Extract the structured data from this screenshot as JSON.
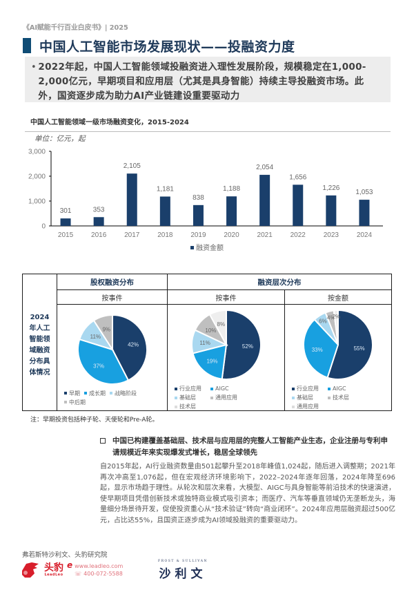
{
  "header": {
    "doc_title": "《AI赋能千行百业白皮书》| 2025",
    "page_title": "中国人工智能市场发展现状——投融资力度",
    "accent_color": "#0f4c75"
  },
  "summary": {
    "bullet": "•",
    "text": "2022年起，中国人工智能领域投融资进入理性发展阶段，规模稳定在1,000-2,000亿元，早期项目和应用层（尤其是具身智能）持续主导投融资市场。此外，国资逐步成为助力AI产业链建设重要驱动力"
  },
  "bar_section": {
    "title": "中国人工智能领域一级市场融资变化，2015-2024",
    "unit": "单位：亿元，起"
  },
  "chart_data": [
    {
      "type": "bar",
      "title": "中国人工智能领域一级市场融资变化，2015-2024",
      "subtitle": "单位：亿元，起",
      "categories": [
        "2015",
        "2016",
        "2017",
        "2018",
        "2019",
        "2020",
        "2021",
        "2022",
        "2023",
        "2024"
      ],
      "series": [
        {
          "name": "融资金额",
          "color": "#1a3f6b",
          "values": [
            301,
            353,
            2105,
            1181,
            838,
            1188,
            2054,
            1656,
            1226,
            1053
          ]
        }
      ],
      "value_labels": [
        "301",
        "353",
        "2,105",
        "1,181",
        "838",
        "1,188",
        "2,054",
        "1,656",
        "1,226",
        "1,053"
      ],
      "yticks": [
        "0",
        "1,000",
        "2,000",
        "3,000"
      ],
      "ylim": [
        0,
        3000
      ],
      "grid": false,
      "legend_position": "bottom",
      "xlabel": "",
      "ylabel": ""
    },
    {
      "type": "pie",
      "title": "股权融资分布 — 按事件",
      "labels": [
        "早期",
        "成长期",
        "战略阶段",
        "中后期"
      ],
      "values": [
        42,
        37,
        11,
        9
      ],
      "value_labels": [
        "42%",
        "37%",
        "11%",
        "9%"
      ],
      "colors": [
        "#1a3f6b",
        "#18a0e0",
        "#a9d8f0",
        "#bfbfbf"
      ],
      "legend_position": "bottom"
    },
    {
      "type": "pie",
      "title": "融资层次分布 — 按事件",
      "labels": [
        "行业应用",
        "AIGC",
        "基础层",
        "通用应用",
        "技术层"
      ],
      "values": [
        52,
        19,
        11,
        10,
        8
      ],
      "value_labels": [
        "52%",
        "19%",
        "11%",
        "10%",
        "8%"
      ],
      "colors": [
        "#1a3f6b",
        "#18a0e0",
        "#a9d8f0",
        "#bfbfbf",
        "#eeeeee"
      ],
      "legend_position": "bottom"
    },
    {
      "type": "pie",
      "title": "融资层次分布 — 按金额",
      "labels": [
        "行业应用",
        "AIGC",
        "基础层",
        "技术层",
        "通用应用"
      ],
      "values": [
        55,
        33,
        6,
        4,
        2
      ],
      "value_labels": [
        "55%",
        "33%",
        "6%",
        "4%",
        "2%"
      ],
      "colors": [
        "#1a3f6b",
        "#18a0e0",
        "#a9d8f0",
        "#bfbfbf",
        "#eeeeee"
      ],
      "legend_position": "bottom"
    }
  ],
  "bar_legend": "融资金额",
  "table": {
    "side_label": "2024年人工智能领域融资分布具体情况",
    "side_lines": [
      "2024",
      "年人工",
      "智能领",
      "域融资",
      "分布具",
      "体情况"
    ],
    "sections": [
      {
        "title": "股权融资分布"
      },
      {
        "title": "融资层次分布"
      }
    ],
    "sub_heads": [
      "按事件",
      "按事件",
      "按金额"
    ],
    "pies": [
      {
        "legend": [
          "早期",
          "成长期",
          "战略阶段",
          "中后期"
        ]
      },
      {
        "legend": [
          "行业应用",
          "AIGC",
          "基础层",
          "通用应用",
          "技术层"
        ]
      },
      {
        "legend": [
          "行业应用",
          "AIGC",
          "基础层",
          "技术层",
          "通用应用"
        ]
      }
    ]
  },
  "note": "注：早期投资包括种子轮、天使轮和Pre-A轮。",
  "key_point": "中国已构建覆盖基础层、技术层与应用层的完整人工智能产业生态，企业注册与专利申请规模近年来实现爆发式增长，稳居全球领先",
  "body_text": "自2015年起，AI行业融资数量由501起攀升至2018年峰值1,024起，随后进入调整期；2021年再次冲高至1,076起，但在宏观经济环境影响下，2022–2024年逐年回落，2024年降至696起，显示市场趋于理性。从轮次和层次来看，大模型、AIGC与具身智能等前沿技术的快速演进，使早期项目凭借创新技术或独特商业模式吸引资本；而医疗、汽车等垂直领域仍无垄断龙头，海量细分场景待开发，促使投资重心从“技术验证”转向“商业闭环”。2024年应用层融资超过500亿元，占比达55%，且国资正逐步成为AI领域投融资的重要驱动力。",
  "footer": {
    "source": "弗若斯特沙利文、头豹研究院",
    "leadleo": {
      "name_cn": "头豹",
      "name_en": "LeadLeo",
      "e_mark": "e",
      "website": "www.leadleo.com",
      "phone": "400-072-5588",
      "brand_color": "#d81e2b"
    },
    "frost": {
      "name_en": "FROST & SULLIVAN",
      "name_cn": "沙利文"
    }
  }
}
